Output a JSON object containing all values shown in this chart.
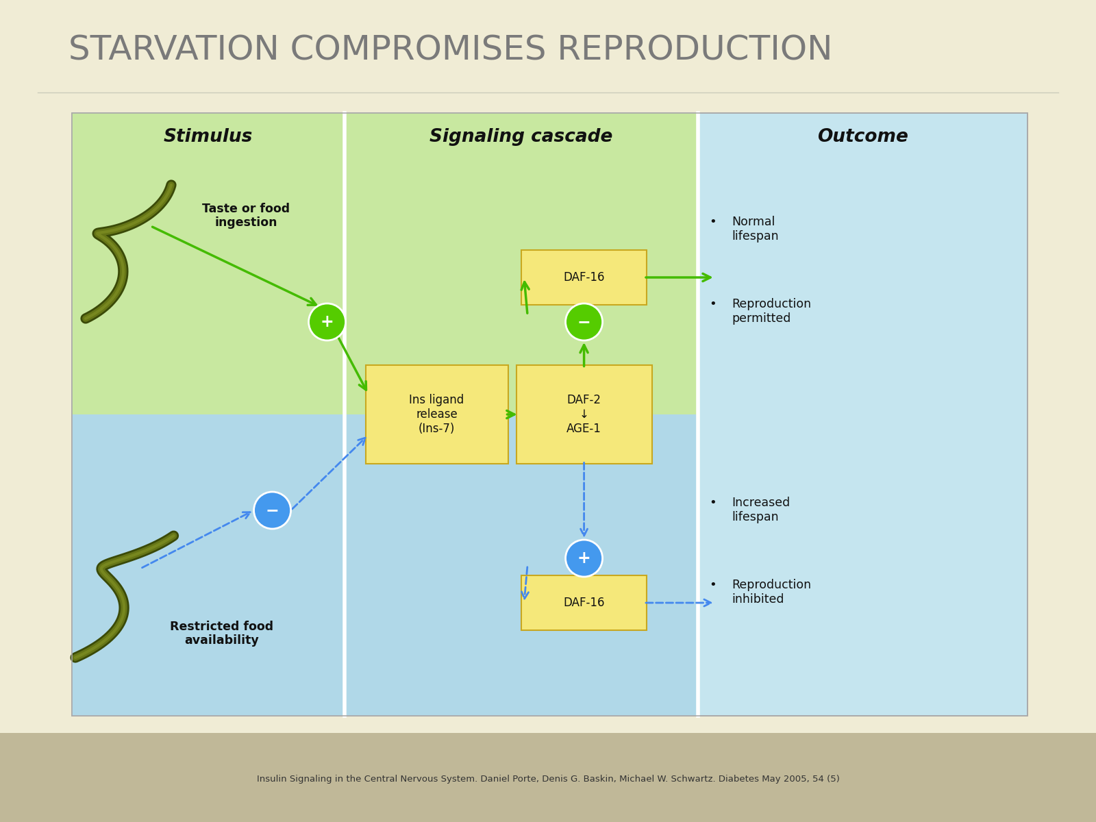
{
  "title": "STARVATION COMPROMISES REPRODUCTION",
  "title_color": "#7a7a7a",
  "bg_color": "#f0ecd5",
  "footer": "Insulin Signaling in the Central Nervous System. Daniel Porte, Denis G. Baskin, Michael W. Schwartz. Diabetes May 2005, 54 (5)",
  "diagram": {
    "outer_bg": "#c5e5ef",
    "top_band_color": "#c8e8a0",
    "bottom_band_color": "#b0d8e8",
    "col_divider_color": "#ffffff",
    "headers": [
      "Stimulus",
      "Signaling cascade",
      "Outcome"
    ],
    "header_color": "#111111",
    "box_fill": "#f5e87a",
    "box_edge": "#c8a820",
    "box_text_color": "#111111",
    "green_color": "#44bb00",
    "blue_color": "#4488ee",
    "green_circle_color": "#55cc00",
    "blue_circle_color": "#4499ee"
  }
}
